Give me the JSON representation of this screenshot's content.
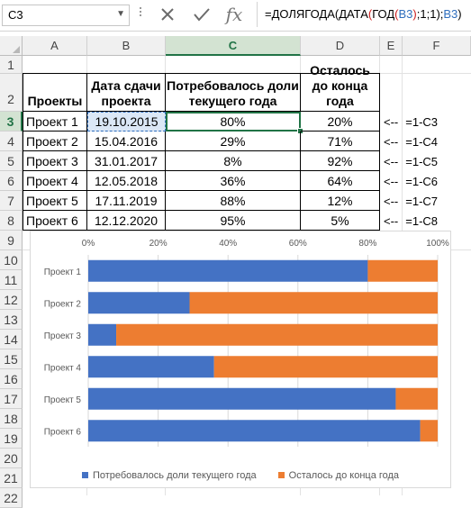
{
  "formula_bar": {
    "name_box": "C3",
    "cancel_icon": "close-icon",
    "enter_icon": "check-icon",
    "fx_label": "fx",
    "formula_parts": [
      "=ДОЛЯГОДА(ДАТА",
      "(",
      "ГОД",
      "(",
      "B3",
      ")",
      ";1;1);",
      "B3",
      ")"
    ]
  },
  "columns": [
    "A",
    "B",
    "C",
    "D",
    "E",
    "F"
  ],
  "selected_column": "C",
  "rows": [
    "1",
    "2",
    "3",
    "4",
    "5",
    "6",
    "7",
    "8",
    "9",
    "10",
    "11",
    "12",
    "13",
    "14",
    "15",
    "16",
    "17",
    "18",
    "19",
    "20",
    "21",
    "22"
  ],
  "selected_row": "3",
  "table": {
    "headers": [
      "Проекты",
      "Дата сдачи проекта",
      "Потребовалось доли текущего года",
      "Осталось до конца года"
    ],
    "rows": [
      [
        "Проект 1",
        "19.10.2015",
        "80%",
        "20%"
      ],
      [
        "Проект 2",
        "15.04.2016",
        "29%",
        "71%"
      ],
      [
        "Проект 3",
        "31.01.2017",
        "8%",
        "92%"
      ],
      [
        "Проект 4",
        "12.05.2018",
        "36%",
        "64%"
      ],
      [
        "Проект 5",
        "17.11.2019",
        "88%",
        "12%"
      ],
      [
        "Проект 6",
        "12.12.2020",
        "95%",
        "5%"
      ]
    ]
  },
  "notes": [
    {
      "arrow": "<--",
      "formula": "=1-C3"
    },
    {
      "arrow": "<--",
      "formula": "=1-C4"
    },
    {
      "arrow": "<--",
      "formula": "=1-C5"
    },
    {
      "arrow": "<--",
      "formula": "=1-C6"
    },
    {
      "arrow": "<--",
      "formula": "=1-C7"
    },
    {
      "arrow": "<--",
      "formula": "=1-C8"
    }
  ],
  "colors": {
    "accent": "#217346",
    "series1": "#4472c4",
    "series2": "#ed7d31"
  },
  "chart_data": {
    "type": "bar",
    "orientation": "horizontal",
    "stacked": "100%",
    "categories": [
      "Проект 1",
      "Проект 2",
      "Проект 3",
      "Проект 4",
      "Проект 5",
      "Проект 6"
    ],
    "series": [
      {
        "name": "Потребовалось доли текущего года",
        "values": [
          80,
          29,
          8,
          36,
          88,
          95
        ],
        "color": "#4472c4"
      },
      {
        "name": "Осталось до конца года",
        "values": [
          20,
          71,
          92,
          64,
          12,
          5
        ],
        "color": "#ed7d31"
      }
    ],
    "xlim": [
      0,
      100
    ],
    "x_ticks": [
      "0%",
      "20%",
      "40%",
      "60%",
      "80%",
      "100%"
    ],
    "axis_position": "top",
    "grid": true,
    "legend": "bottom"
  }
}
